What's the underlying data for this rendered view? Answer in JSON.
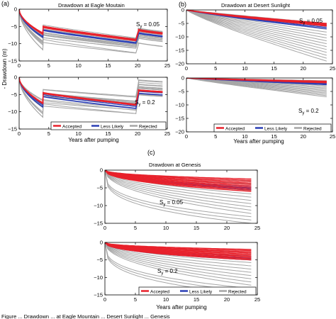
{
  "colors": {
    "accepted": "#e8212b",
    "less_likely": "#2b3fb5",
    "rejected": "#a6a6a6",
    "axis": "#000000"
  },
  "figure": {
    "caption_fragment": "Figure ... Drawdown ... at Eagle Mountain ... Desert Sunlight ... Genesis"
  },
  "panel_labels": {
    "a": "(a)",
    "b": "(b)",
    "c": "(c)"
  },
  "titles": {
    "a": "Drawdown at Eagle Moutain",
    "b": "Drawdown at Desert Sunlight",
    "c": "Drawdown at Genesis"
  },
  "ylabel": "- Drawdown (m)",
  "xlabel": "Years after pumping",
  "sy_labels": {
    "low_main": "S",
    "low_sub": "y",
    "low_value": " = 0.05",
    "high_main": "S",
    "high_sub": "y",
    "high_value": " = 0.2"
  },
  "legend": {
    "accepted": "Accepted",
    "less_likely": "Less Likely",
    "rejected": "Rejected"
  },
  "chart_data": [
    {
      "panel": "a-top",
      "type": "line",
      "title": "Drawdown at Eagle Moutain",
      "sy": "0.05",
      "xlim": [
        0,
        25
      ],
      "ylim": [
        -15,
        0
      ],
      "xticks": [
        0,
        5,
        10,
        15,
        20,
        25
      ],
      "yticks": [
        0,
        -5,
        -10,
        -15
      ],
      "series": [
        {
          "name": "Rejected",
          "values_at": {
            "x": [
              0,
              4,
              4.2,
              20,
              20.2,
              24
            ],
            "y_range": [
              [
                0,
                0
              ],
              [
                -7,
                -12
              ],
              [
                -5,
                -9
              ],
              [
                -8,
                -13
              ],
              [
                -5,
                -10
              ],
              [
                -6,
                -11
              ]
            ]
          }
        },
        {
          "name": "Less Likely",
          "values_at": {
            "x": [
              0,
              4,
              4.2,
              20,
              20.2,
              24
            ],
            "y": [
              0,
              -7.5,
              -5.5,
              -9.5,
              -6.5,
              -7.5
            ]
          }
        },
        {
          "name": "Accepted",
          "values_at": {
            "x": [
              0,
              4,
              4.2,
              20,
              20.2,
              24
            ],
            "y": [
              0,
              -7,
              -5,
              -9,
              -6,
              -7
            ]
          }
        }
      ]
    },
    {
      "panel": "a-bottom",
      "type": "line",
      "sy": "0.2",
      "xlim": [
        0,
        25
      ],
      "ylim": [
        -15,
        0
      ],
      "xticks": [
        0,
        5,
        10,
        15,
        20,
        25
      ],
      "yticks": [
        0,
        -5,
        -10,
        -15
      ],
      "series": [
        {
          "name": "Rejected",
          "values_at": {
            "x": [
              0,
              4,
              4.2,
              20,
              20.2,
              24
            ],
            "y_range": [
              [
                0,
                0
              ],
              [
                -6,
                -12
              ],
              [
                -3,
                -9
              ],
              [
                -5,
                -11
              ],
              [
                -2,
                -7
              ],
              [
                -2,
                -7
              ]
            ]
          }
        },
        {
          "name": "Less Likely",
          "values_at": {
            "x": [
              0,
              4,
              4.2,
              20,
              20.2,
              24
            ],
            "y": [
              0,
              -8,
              -5,
              -8.5,
              -4,
              -4.5
            ]
          }
        },
        {
          "name": "Accepted",
          "values_at": {
            "x": [
              0,
              4,
              4.2,
              20,
              20.2,
              24
            ],
            "y": [
              0,
              -7.5,
              -4.5,
              -8,
              -3.5,
              -4
            ]
          }
        }
      ]
    },
    {
      "panel": "b-top",
      "type": "line",
      "title": "Drawdown at Desert Sunlight",
      "sy": "0.05",
      "xlim": [
        0,
        25
      ],
      "ylim": [
        -20,
        0
      ],
      "xticks": [
        0,
        5,
        10,
        15,
        20,
        25
      ],
      "yticks": [
        0,
        -5,
        -10,
        -15,
        -20
      ],
      "series": [
        {
          "name": "Rejected",
          "values_at": {
            "x": [
              0,
              24
            ],
            "y_range": [
              [
                0,
                0
              ],
              [
                -5,
                -19
              ]
            ]
          }
        },
        {
          "name": "Less Likely",
          "values_at": {
            "x": [
              0,
              24
            ],
            "y": [
              0,
              -6
            ]
          }
        },
        {
          "name": "Accepted",
          "values_at": {
            "x": [
              0,
              24
            ],
            "y": [
              0,
              -5.5
            ]
          }
        }
      ]
    },
    {
      "panel": "b-bottom",
      "type": "line",
      "sy": "0.2",
      "xlim": [
        0,
        25
      ],
      "ylim": [
        -20,
        0
      ],
      "xticks": [
        0,
        5,
        10,
        15,
        20,
        25
      ],
      "yticks": [
        0,
        -5,
        -10,
        -15,
        -20
      ],
      "series": [
        {
          "name": "Rejected",
          "values_at": {
            "x": [
              0,
              24
            ],
            "y_range": [
              [
                0,
                0
              ],
              [
                -1,
                -7
              ]
            ]
          }
        },
        {
          "name": "Less Likely",
          "values_at": {
            "x": [
              0,
              24
            ],
            "y": [
              0,
              -2
            ]
          }
        },
        {
          "name": "Accepted",
          "values_at": {
            "x": [
              0,
              24
            ],
            "y": [
              0,
              -1.5
            ]
          }
        }
      ]
    },
    {
      "panel": "c-top",
      "type": "line",
      "title": "Drawdown at Genesis",
      "sy": "0.05",
      "xlim": [
        0,
        25
      ],
      "ylim": [
        -15,
        0
      ],
      "xticks": [
        0,
        5,
        10,
        15,
        20,
        25
      ],
      "yticks": [
        0,
        -5,
        -10,
        -15
      ],
      "series": [
        {
          "name": "Rejected",
          "values_at": {
            "x": [
              0,
              24
            ],
            "y_range": [
              [
                0,
                0
              ],
              [
                -3,
                -15
              ]
            ]
          }
        },
        {
          "name": "Less Likely",
          "values_at": {
            "x": [
              0,
              24
            ],
            "y": [
              0,
              -5
            ]
          }
        },
        {
          "name": "Accepted",
          "values_at": {
            "x": [
              0,
              24
            ],
            "y_range": [
              [
                0,
                0
              ],
              [
                -2.5,
                -6
              ]
            ]
          }
        }
      ]
    },
    {
      "panel": "c-bottom",
      "type": "line",
      "sy": "0.2",
      "xlim": [
        0,
        25
      ],
      "ylim": [
        -15,
        0
      ],
      "xticks": [
        0,
        5,
        10,
        15,
        20,
        25
      ],
      "yticks": [
        0,
        -5,
        -10,
        -15
      ],
      "series": [
        {
          "name": "Rejected",
          "values_at": {
            "x": [
              0,
              24
            ],
            "y_range": [
              [
                0,
                0
              ],
              [
                -3,
                -15
              ]
            ]
          }
        },
        {
          "name": "Less Likely",
          "values_at": {
            "x": [
              0,
              24
            ],
            "y": [
              0,
              -4.5
            ]
          }
        },
        {
          "name": "Accepted",
          "values_at": {
            "x": [
              0,
              24
            ],
            "y_range": [
              [
                0,
                0
              ],
              [
                -2,
                -5
              ]
            ]
          }
        }
      ]
    }
  ]
}
